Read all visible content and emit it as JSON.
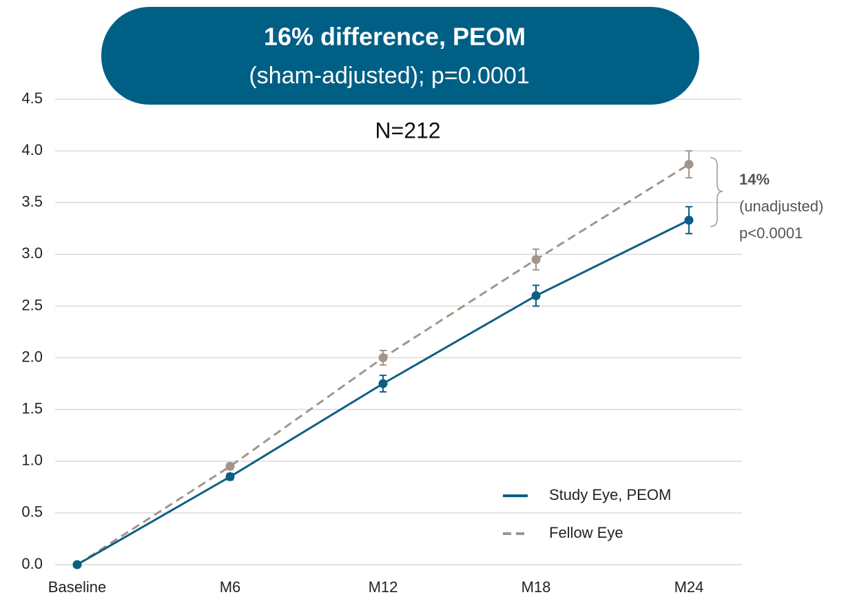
{
  "chart_data": {
    "type": "line",
    "title": "16% difference, PEOM",
    "subtitle": "(sham-adjusted); p=0.0001",
    "note": "N=212",
    "annotation": {
      "title": "14%",
      "lines": [
        "(unadjusted)",
        "p<0.0001"
      ]
    },
    "categories": [
      "Baseline",
      "M6",
      "M12",
      "M18",
      "M24"
    ],
    "series": [
      {
        "name": "Study Eye, PEOM",
        "color": "#0b5f84",
        "dash": false,
        "values": [
          0,
          0.85,
          1.75,
          2.6,
          3.33
        ],
        "errors": [
          0,
          0.03,
          0.08,
          0.1,
          0.13
        ]
      },
      {
        "name": "Fellow Eye",
        "color": "#a39589",
        "dash": true,
        "values": [
          0,
          0.95,
          2.0,
          2.95,
          3.87
        ],
        "errors": [
          0,
          0.03,
          0.07,
          0.1,
          0.13
        ]
      }
    ],
    "ylim": [
      0,
      4.5
    ],
    "yticks": [
      {
        "value": 0,
        "label": "0.0"
      },
      0.5,
      {
        "value": 1,
        "label": "1.0"
      },
      1.5,
      {
        "value": 2,
        "label": "2.0"
      },
      2.5,
      {
        "value": 3,
        "label": "3.0"
      },
      3.5,
      {
        "value": 4,
        "label": "4.0"
      },
      4.5
    ],
    "grid": true,
    "legend": "lower right"
  }
}
